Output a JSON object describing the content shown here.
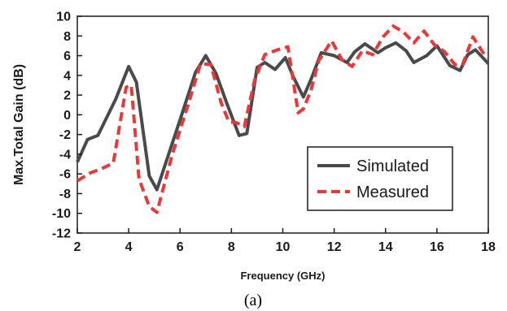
{
  "caption": "(a)",
  "chart_data": {
    "type": "line",
    "xlabel": "Frequency (GHz)",
    "ylabel": "Max.Total Gain (dB)",
    "xlim": [
      2,
      18
    ],
    "ylim": [
      -12,
      10
    ],
    "xticks": [
      2,
      4,
      6,
      8,
      10,
      12,
      14,
      16,
      18
    ],
    "yticks": [
      -12,
      -10,
      -8,
      -6,
      -4,
      -2,
      0,
      2,
      4,
      6,
      8,
      10
    ],
    "grid": false,
    "legend_position": "bottom-right",
    "series": [
      {
        "name": "Simulated",
        "color": "#4a4a4a",
        "style": "solid",
        "x": [
          2.0,
          2.4,
          2.8,
          3.5,
          4.0,
          4.3,
          4.8,
          5.1,
          6.0,
          6.6,
          7.0,
          7.4,
          7.8,
          8.3,
          8.6,
          9.0,
          9.3,
          9.7,
          10.1,
          10.4,
          10.8,
          11.1,
          11.5,
          12.0,
          12.5,
          12.8,
          13.2,
          13.7,
          14.0,
          14.4,
          14.8,
          15.1,
          15.6,
          16.0,
          16.5,
          16.9,
          17.2,
          17.5,
          18.0
        ],
        "y": [
          -4.8,
          -2.5,
          -2.1,
          1.6,
          4.9,
          3.3,
          -6.2,
          -7.6,
          -0.5,
          4.3,
          6.0,
          4.2,
          1.3,
          -2.1,
          -1.9,
          4.8,
          5.3,
          4.6,
          5.8,
          3.9,
          1.8,
          3.6,
          6.3,
          6.0,
          5.3,
          6.4,
          7.2,
          6.3,
          6.8,
          7.3,
          6.5,
          5.3,
          6.0,
          7.0,
          5.0,
          4.5,
          6.1,
          6.6,
          5.2
        ]
      },
      {
        "name": "Measured",
        "color": "#e8393a",
        "style": "dashed",
        "x": [
          2.0,
          2.5,
          3.0,
          3.4,
          3.9,
          4.1,
          4.4,
          4.8,
          5.1,
          5.7,
          6.3,
          6.8,
          7.2,
          7.6,
          7.9,
          8.2,
          8.5,
          8.9,
          9.3,
          9.8,
          10.2,
          10.6,
          10.8,
          11.1,
          11.4,
          11.9,
          12.3,
          12.7,
          13.1,
          13.5,
          13.9,
          14.3,
          14.7,
          15.1,
          15.5,
          15.9,
          16.3,
          16.7,
          17.0,
          17.4,
          17.8,
          18.0
        ],
        "y": [
          -6.7,
          -5.9,
          -5.4,
          -4.9,
          2.8,
          3.0,
          -6.5,
          -9.3,
          -9.9,
          -4.0,
          0.9,
          5.2,
          5.1,
          1.2,
          -0.7,
          -0.8,
          -1.2,
          3.5,
          6.1,
          6.6,
          6.9,
          0.2,
          0.6,
          2.5,
          5.5,
          7.5,
          5.6,
          4.9,
          6.5,
          6.1,
          7.9,
          9.0,
          8.4,
          7.3,
          8.5,
          7.1,
          6.4,
          5.1,
          5.1,
          7.9,
          6.3,
          5.8
        ]
      }
    ]
  }
}
